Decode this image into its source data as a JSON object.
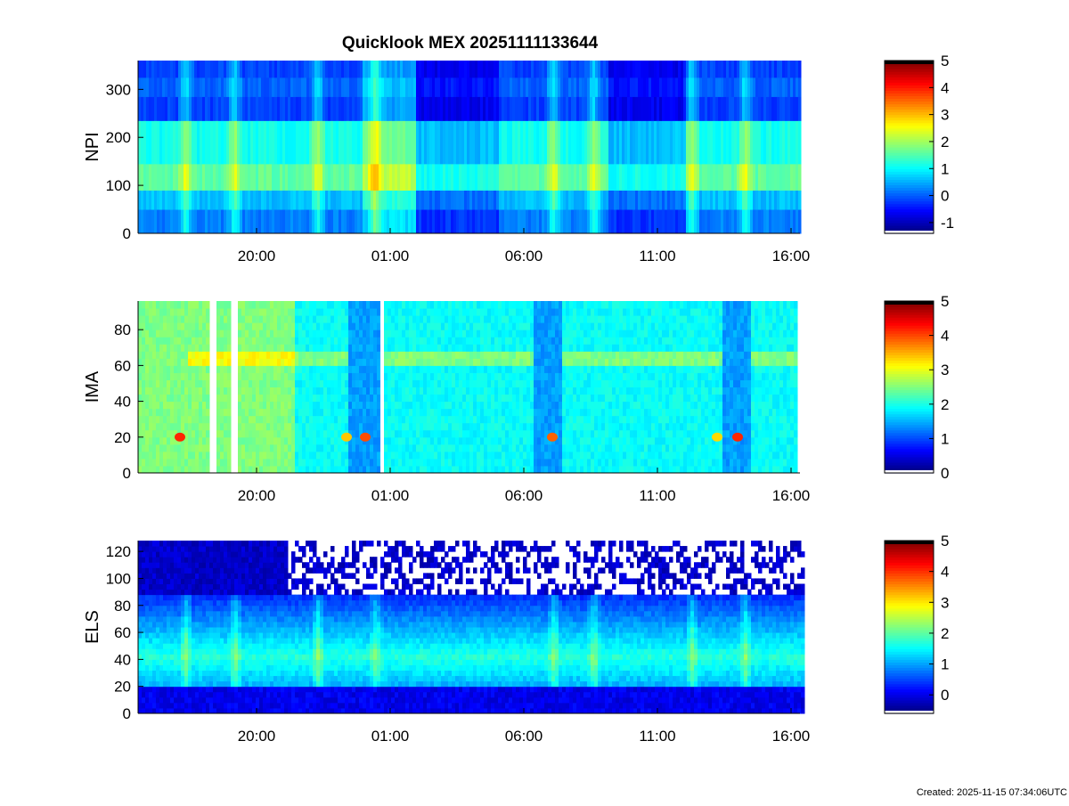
{
  "title": "Quicklook MEX 20251111133644",
  "footer": "Created: 2025-11-15 07:34:06UTC",
  "chart_data": [
    {
      "type": "heatmap",
      "ylabel": "NPI",
      "ylim": [
        0,
        360
      ],
      "yticks": [
        0,
        100,
        200,
        300
      ],
      "x_ticks": [
        "20:00",
        "01:00",
        "06:00",
        "11:00",
        "16:00"
      ],
      "colorbar": {
        "range": [
          -1.4,
          5
        ],
        "ticks": [
          -1,
          0,
          1,
          2,
          3,
          4,
          5
        ]
      },
      "bands": [
        {
          "y0": 0,
          "y1": 50,
          "level": 0.2
        },
        {
          "y0": 50,
          "y1": 90,
          "level": 0.6
        },
        {
          "y0": 90,
          "y1": 145,
          "level": 1.6
        },
        {
          "y0": 145,
          "y1": 235,
          "level": 1.1
        },
        {
          "y0": 235,
          "y1": 285,
          "level": -0.2
        },
        {
          "y0": 285,
          "y1": 325,
          "level": 0.0
        },
        {
          "y0": 325,
          "y1": 360,
          "level": -0.2
        }
      ]
    },
    {
      "type": "heatmap",
      "ylabel": "IMA",
      "ylim": [
        0,
        96
      ],
      "yticks": [
        0,
        20,
        40,
        60,
        80
      ],
      "x_ticks": [
        "20:00",
        "01:00",
        "06:00",
        "11:00",
        "16:00"
      ],
      "colorbar": {
        "range": [
          0,
          5
        ],
        "ticks": [
          0,
          1,
          2,
          3,
          4,
          5
        ]
      },
      "background_level": 1.9,
      "line_level": 2.5,
      "line_y": 62,
      "peak_y": 20
    },
    {
      "type": "heatmap",
      "ylabel": "ELS",
      "ylim": [
        0,
        128
      ],
      "yticks": [
        0,
        20,
        40,
        60,
        80,
        100,
        120
      ],
      "x_ticks": [
        "20:00",
        "01:00",
        "06:00",
        "11:00",
        "16:00"
      ],
      "colorbar": {
        "range": [
          -0.6,
          5
        ],
        "ticks": [
          0,
          1,
          2,
          3,
          4,
          5
        ]
      },
      "core_y": 40,
      "core_level": 1.7
    }
  ]
}
